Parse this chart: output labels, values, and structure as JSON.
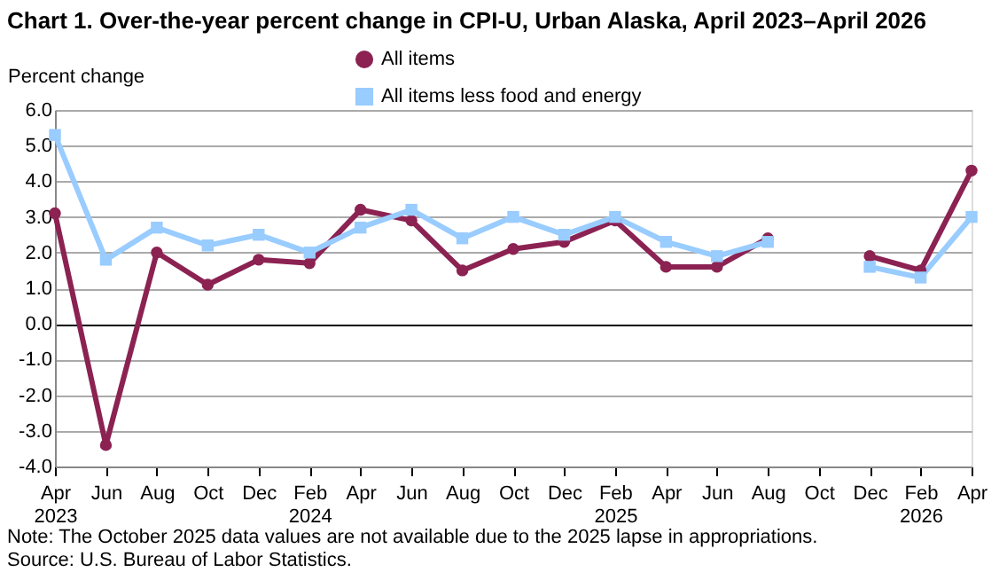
{
  "chart_data": {
    "type": "line",
    "title": "Chart 1. Over-the-year percent change in CPI-U, Urban Alaska, April 2023–April 2026",
    "ylabel": "Percent change",
    "categories": [
      "Apr\n2023",
      "Jun",
      "Aug",
      "Oct",
      "Dec",
      "Feb\n2024",
      "Apr",
      "Jun",
      "Aug",
      "Oct",
      "Dec",
      "Feb\n2025",
      "Apr",
      "Jun",
      "Aug",
      "Oct",
      "Dec",
      "Feb\n2026",
      "Apr"
    ],
    "series": [
      {
        "name": "All items",
        "color": "#8b2252",
        "marker": "circle",
        "values": [
          3.1,
          -3.4,
          2.0,
          1.1,
          1.8,
          1.7,
          3.2,
          2.9,
          1.5,
          2.1,
          2.3,
          2.9,
          1.6,
          1.6,
          2.4,
          null,
          1.9,
          1.5,
          4.3
        ]
      },
      {
        "name": "All items less food and energy",
        "color": "#99ccff",
        "marker": "square",
        "values": [
          5.3,
          1.8,
          2.7,
          2.2,
          2.5,
          2.0,
          2.7,
          3.2,
          2.4,
          3.0,
          2.5,
          3.0,
          2.3,
          1.9,
          2.3,
          null,
          1.6,
          1.3,
          3.0
        ]
      }
    ],
    "ylim": [
      -4,
      6
    ],
    "yticks": [
      {
        "value": -4,
        "label": "-4.0"
      },
      {
        "value": -3,
        "label": "-3.0"
      },
      {
        "value": -2,
        "label": "-2.0"
      },
      {
        "value": -1,
        "label": "-1.0"
      },
      {
        "value": 0,
        "label": "0.0"
      },
      {
        "value": 1,
        "label": "1.0"
      },
      {
        "value": 2,
        "label": "2.0"
      },
      {
        "value": 3,
        "label": "3.0"
      },
      {
        "value": 4,
        "label": "4.0"
      },
      {
        "value": 5,
        "label": "5.0"
      },
      {
        "value": 6,
        "label": "6.0"
      }
    ],
    "grid": "y",
    "legend": "top",
    "annotations": [
      "Note: The October 2025 data values are not available due to the 2025 lapse in appropriations.",
      "Source: U.S. Bureau of Labor Statistics."
    ]
  }
}
